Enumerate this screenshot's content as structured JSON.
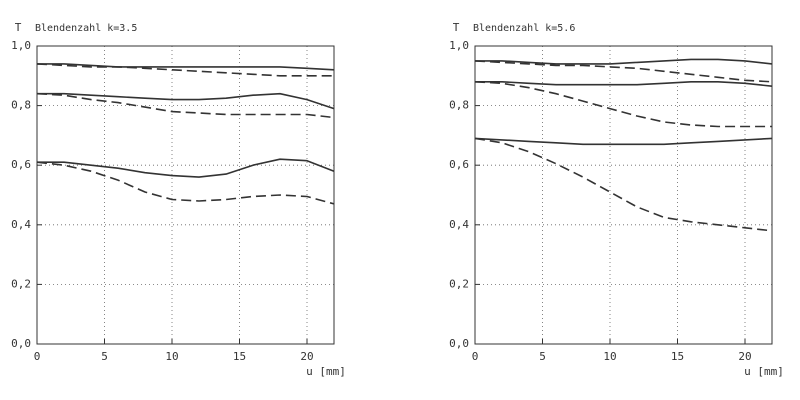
{
  "chart_data": [
    {
      "type": "line",
      "title": "Blendenzahl k=3.5",
      "ylabel": "T",
      "xlabel": "u [mm]",
      "x": [
        0,
        2,
        4,
        6,
        8,
        10,
        12,
        14,
        16,
        18,
        20,
        22
      ],
      "series": [
        {
          "color": "#333333",
          "style": "solid",
          "values": [
            0.94,
            0.94,
            0.935,
            0.93,
            0.93,
            0.93,
            0.93,
            0.93,
            0.93,
            0.93,
            0.925,
            0.92
          ]
        },
        {
          "color": "#333333",
          "style": "dashed",
          "values": [
            0.94,
            0.935,
            0.93,
            0.93,
            0.925,
            0.92,
            0.915,
            0.91,
            0.905,
            0.9,
            0.9,
            0.9
          ]
        },
        {
          "color": "#333333",
          "style": "solid",
          "values": [
            0.84,
            0.84,
            0.835,
            0.83,
            0.825,
            0.82,
            0.82,
            0.825,
            0.835,
            0.84,
            0.82,
            0.79
          ]
        },
        {
          "color": "#333333",
          "style": "dashed",
          "values": [
            0.84,
            0.835,
            0.82,
            0.81,
            0.795,
            0.78,
            0.775,
            0.77,
            0.77,
            0.77,
            0.77,
            0.76
          ]
        },
        {
          "color": "#333333",
          "style": "solid",
          "values": [
            0.61,
            0.61,
            0.6,
            0.59,
            0.575,
            0.565,
            0.56,
            0.57,
            0.6,
            0.62,
            0.615,
            0.58
          ]
        },
        {
          "color": "#333333",
          "style": "dashed",
          "values": [
            0.61,
            0.6,
            0.58,
            0.55,
            0.51,
            0.485,
            0.48,
            0.485,
            0.495,
            0.5,
            0.495,
            0.47
          ]
        }
      ],
      "xlim": [
        0,
        22
      ],
      "xticks": [
        0,
        5,
        10,
        15,
        20
      ],
      "ylim": [
        0,
        1
      ],
      "yticks": [
        {
          "value": 0,
          "label": "0,0"
        },
        {
          "value": 0.2,
          "label": "0,2"
        },
        {
          "value": 0.4,
          "label": "0,4"
        },
        {
          "value": 0.6,
          "label": "0,6"
        },
        {
          "value": 0.8,
          "label": "0,8"
        },
        {
          "value": 1,
          "label": "1,0"
        }
      ],
      "grid": true
    },
    {
      "type": "line",
      "title": "Blendenzahl k=5.6",
      "ylabel": "T",
      "xlabel": "u [mm]",
      "x": [
        0,
        2,
        4,
        6,
        8,
        10,
        12,
        14,
        16,
        18,
        20,
        22
      ],
      "series": [
        {
          "color": "#333333",
          "style": "solid",
          "values": [
            0.95,
            0.95,
            0.945,
            0.94,
            0.94,
            0.94,
            0.945,
            0.95,
            0.955,
            0.955,
            0.95,
            0.94
          ]
        },
        {
          "color": "#333333",
          "style": "dashed",
          "values": [
            0.95,
            0.945,
            0.94,
            0.935,
            0.935,
            0.93,
            0.925,
            0.915,
            0.905,
            0.895,
            0.885,
            0.88
          ]
        },
        {
          "color": "#333333",
          "style": "solid",
          "values": [
            0.88,
            0.88,
            0.875,
            0.87,
            0.87,
            0.87,
            0.87,
            0.875,
            0.88,
            0.88,
            0.875,
            0.865
          ]
        },
        {
          "color": "#333333",
          "style": "dashed",
          "values": [
            0.88,
            0.875,
            0.86,
            0.84,
            0.815,
            0.79,
            0.765,
            0.745,
            0.735,
            0.73,
            0.73,
            0.73
          ]
        },
        {
          "color": "#333333",
          "style": "solid",
          "values": [
            0.69,
            0.685,
            0.68,
            0.675,
            0.67,
            0.67,
            0.67,
            0.67,
            0.675,
            0.68,
            0.685,
            0.69
          ]
        },
        {
          "color": "#333333",
          "style": "dashed",
          "values": [
            0.69,
            0.675,
            0.645,
            0.605,
            0.56,
            0.51,
            0.46,
            0.425,
            0.41,
            0.4,
            0.39,
            0.38
          ]
        }
      ],
      "xlim": [
        0,
        22
      ],
      "xticks": [
        0,
        5,
        10,
        15,
        20
      ],
      "ylim": [
        0,
        1
      ],
      "yticks": [
        {
          "value": 0,
          "label": "0,0"
        },
        {
          "value": 0.2,
          "label": "0,2"
        },
        {
          "value": 0.4,
          "label": "0,4"
        },
        {
          "value": 0.6,
          "label": "0,6"
        },
        {
          "value": 0.8,
          "label": "0,8"
        },
        {
          "value": 1,
          "label": "1,0"
        }
      ],
      "grid": true
    }
  ]
}
